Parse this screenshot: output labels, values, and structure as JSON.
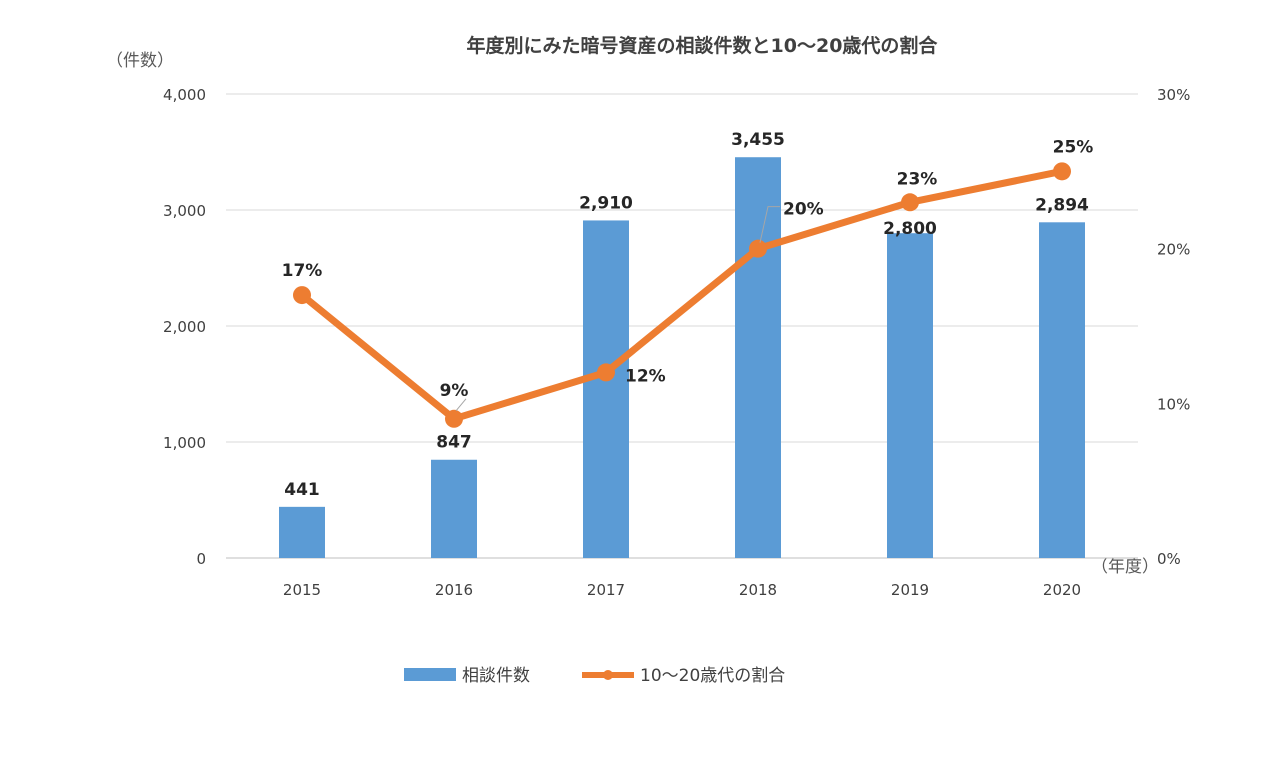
{
  "chart_data": {
    "type": "bar+line",
    "title": "年度別にみた暗号資産の相談件数と10～20歳代の割合",
    "categories": [
      "2015",
      "2016",
      "2017",
      "2018",
      "2019",
      "2020"
    ],
    "x_unit_label": "（年度）",
    "y_left": {
      "unit_label": "（件数）",
      "range": [
        0,
        4000
      ],
      "ticks": [
        "0",
        "1,000",
        "2,000",
        "3,000",
        "4,000"
      ],
      "tick_values": [
        0,
        1000,
        2000,
        3000,
        4000
      ]
    },
    "y_right": {
      "range": [
        0,
        30
      ],
      "ticks": [
        "0%",
        "10%",
        "20%",
        "30%"
      ],
      "tick_values": [
        0,
        10,
        20,
        30
      ]
    },
    "series": [
      {
        "name": "相談件数",
        "type": "bar",
        "axis": "left",
        "color": "#5b9bd5",
        "values": [
          441,
          847,
          2910,
          3455,
          2800,
          2894
        ],
        "labels": [
          "441",
          "847",
          "2,910",
          "3,455",
          "2,800",
          "2,894"
        ]
      },
      {
        "name": "10～20歳代の割合",
        "type": "line",
        "axis": "right",
        "color": "#ed7d31",
        "values": [
          17,
          9,
          12,
          20,
          23,
          25
        ],
        "labels": [
          "17%",
          "9%",
          "12%",
          "20%",
          "23%",
          "25%"
        ]
      }
    ],
    "grid": true,
    "legend": "bottom"
  }
}
